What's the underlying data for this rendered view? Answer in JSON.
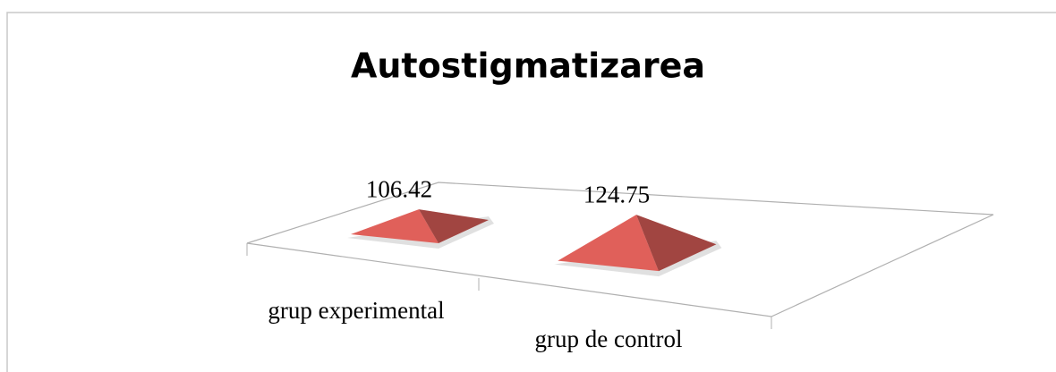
{
  "chart_data": {
    "type": "pyramid",
    "title": "Autostigmatizarea",
    "categories": [
      "grup experimental",
      "grup de control"
    ],
    "values": [
      106.42,
      124.75
    ],
    "color": "#e0605a"
  }
}
